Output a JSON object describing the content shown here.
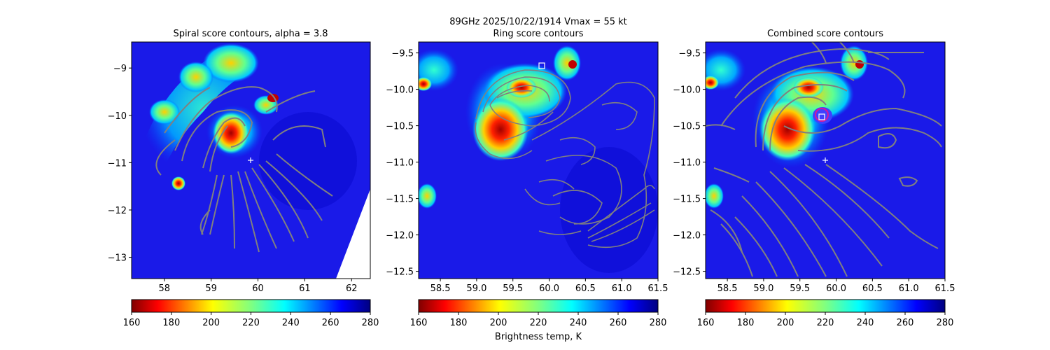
{
  "suptitle": "89GHz  2025/10/22/1914    Vmax = 55 kt",
  "colorbar_label": "Brightness temp, K",
  "colors": {
    "contour": "#808080",
    "marker": "#ffffff",
    "ring_circle": "#d4189c",
    "background": "#1a1ae8",
    "colormap": "jet_r"
  },
  "chart_data": [
    {
      "type": "heatmap",
      "title": "Spiral score contours, alpha =  3.8",
      "xlim": [
        57.3,
        62.4
      ],
      "ylim": [
        -13.45,
        -8.45
      ],
      "xticks": [
        "58",
        "59",
        "60",
        "61",
        "62"
      ],
      "yticks": [
        "-9",
        "-10",
        "-11",
        "-12",
        "-13"
      ],
      "colorbar": {
        "min": 160,
        "max": 280,
        "ticks": [
          "160",
          "180",
          "200",
          "220",
          "240",
          "260",
          "280"
        ]
      },
      "markers": [
        {
          "shape": "plus",
          "x": 59.82,
          "y": -10.95
        }
      ],
      "missing_data_region": "lower-right corner",
      "overlay": "grey spiral score contours"
    },
    {
      "type": "heatmap",
      "title": "Ring score contours",
      "xlim": [
        58.2,
        61.5
      ],
      "ylim": [
        -12.6,
        -9.35
      ],
      "xticks": [
        "58.5",
        "59.0",
        "59.5",
        "60.0",
        "60.5",
        "61.0",
        "61.5"
      ],
      "yticks": [
        "-9.5",
        "-10.0",
        "-10.5",
        "-11.0",
        "-11.5",
        "-12.0",
        "-12.5"
      ],
      "colorbar": {
        "min": 160,
        "max": 280,
        "ticks": [
          "160",
          "180",
          "200",
          "220",
          "240",
          "260",
          "280"
        ]
      },
      "markers": [
        {
          "shape": "square",
          "x": 59.9,
          "y": -9.67
        }
      ],
      "overlay": "grey ring score contours"
    },
    {
      "type": "heatmap",
      "title": "Combined score contours",
      "xlim": [
        58.2,
        61.5
      ],
      "ylim": [
        -12.6,
        -9.35
      ],
      "xticks": [
        "58.5",
        "59.0",
        "59.5",
        "60.0",
        "60.5",
        "61.0",
        "61.5"
      ],
      "yticks": [
        "-9.5",
        "-10.0",
        "-10.5",
        "-11.0",
        "-11.5",
        "-12.0",
        "-12.5"
      ],
      "colorbar": {
        "min": 160,
        "max": 280,
        "ticks": [
          "160",
          "180",
          "200",
          "220",
          "240",
          "260",
          "280"
        ]
      },
      "markers": [
        {
          "shape": "plus",
          "x": 59.85,
          "y": -10.95
        },
        {
          "shape": "square",
          "x": 59.77,
          "y": -10.34
        },
        {
          "shape": "circle",
          "x": 59.77,
          "y": -10.3
        }
      ],
      "overlay": "grey combined score contours"
    }
  ]
}
